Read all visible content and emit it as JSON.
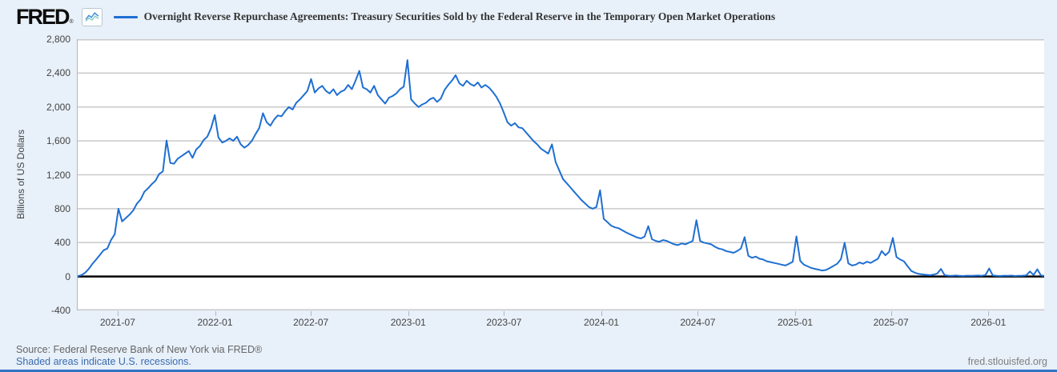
{
  "header": {
    "logo_text": "FRED",
    "registered_mark": "®",
    "series_title": "Overnight Reverse Repurchase Agreements: Treasury Securities Sold by the Federal Reserve in the Temporary Open Market Operations"
  },
  "colors": {
    "background": "#e8f0f9",
    "plot_background": "#ffffff",
    "gridline": "#c9c9c9",
    "series_line": "#1f6fd2",
    "zero_line": "#000000",
    "axis_text": "#444444",
    "title_text": "#333333",
    "source_text": "#666666",
    "link_text": "#3a6bb0",
    "url_text": "#7f7f7f",
    "bottom_bar": "#3273c4"
  },
  "footer": {
    "source": "Source: Federal Reserve Bank of New York via FRED®",
    "note": "Shaded areas indicate U.S. recessions.",
    "site_url": "fred.stlouisfed.org"
  },
  "chart_data": {
    "type": "line",
    "title": "Overnight Reverse Repurchase Agreements: Treasury Securities Sold by the Federal Reserve in the Temporary Open Market Operations",
    "xlabel": "",
    "ylabel": "Billions of US Dollars",
    "ylim": [
      -400,
      2800
    ],
    "y_ticks": [
      2800,
      2400,
      2000,
      1600,
      1200,
      800,
      400,
      0,
      -400
    ],
    "x_domain": [
      "2021-04-15",
      "2026-04-15"
    ],
    "x_ticks": [
      {
        "label": "2021-07",
        "date": "2021-07-01"
      },
      {
        "label": "2022-01",
        "date": "2022-01-01"
      },
      {
        "label": "2022-07",
        "date": "2022-07-01"
      },
      {
        "label": "2023-01",
        "date": "2023-01-01"
      },
      {
        "label": "2023-07",
        "date": "2023-07-01"
      },
      {
        "label": "2024-01",
        "date": "2024-01-01"
      },
      {
        "label": "2024-07",
        "date": "2024-07-01"
      },
      {
        "label": "2025-01",
        "date": "2025-01-01"
      },
      {
        "label": "2025-07",
        "date": "2025-07-01"
      },
      {
        "label": "2026-01",
        "date": "2026-01-01"
      }
    ],
    "grid": true,
    "legend_position": "top",
    "zero_line": 0,
    "frequency": "weekly",
    "series": [
      {
        "name": "Overnight Reverse Repurchase Agreements: Treasury Securities Sold by the Federal Reserve in the Temporary Open Market Operations",
        "color": "#1f6fd2",
        "start_date": "2021-04-15",
        "interval_days": 7,
        "values": [
          5,
          15,
          45,
          90,
          150,
          200,
          255,
          310,
          330,
          430,
          500,
          800,
          650,
          690,
          730,
          780,
          860,
          910,
          1000,
          1040,
          1090,
          1130,
          1210,
          1240,
          1605,
          1340,
          1330,
          1390,
          1420,
          1450,
          1480,
          1400,
          1500,
          1540,
          1610,
          1650,
          1750,
          1905,
          1640,
          1580,
          1600,
          1630,
          1600,
          1650,
          1560,
          1520,
          1550,
          1600,
          1680,
          1750,
          1927,
          1820,
          1780,
          1850,
          1900,
          1890,
          1950,
          2000,
          1970,
          2050,
          2090,
          2140,
          2190,
          2330,
          2170,
          2220,
          2250,
          2190,
          2160,
          2210,
          2140,
          2180,
          2200,
          2260,
          2210,
          2310,
          2426,
          2230,
          2210,
          2170,
          2250,
          2140,
          2090,
          2040,
          2110,
          2130,
          2160,
          2210,
          2240,
          2554,
          2090,
          2040,
          2000,
          2030,
          2050,
          2090,
          2110,
          2060,
          2100,
          2200,
          2260,
          2310,
          2375,
          2280,
          2250,
          2310,
          2270,
          2250,
          2290,
          2230,
          2260,
          2230,
          2180,
          2120,
          2040,
          1935,
          1820,
          1780,
          1810,
          1760,
          1750,
          1700,
          1650,
          1600,
          1560,
          1510,
          1480,
          1450,
          1560,
          1350,
          1250,
          1150,
          1100,
          1050,
          1000,
          950,
          900,
          860,
          820,
          800,
          820,
          1018,
          680,
          640,
          600,
          580,
          570,
          545,
          520,
          500,
          480,
          460,
          450,
          470,
          594,
          440,
          420,
          410,
          430,
          420,
          400,
          380,
          370,
          390,
          380,
          400,
          420,
          665,
          420,
          400,
          390,
          380,
          350,
          330,
          320,
          300,
          290,
          280,
          300,
          330,
          465,
          245,
          220,
          235,
          210,
          200,
          180,
          170,
          160,
          150,
          140,
          130,
          150,
          175,
          473,
          185,
          140,
          120,
          100,
          90,
          80,
          70,
          78,
          100,
          125,
          150,
          205,
          399,
          155,
          130,
          140,
          165,
          150,
          175,
          160,
          185,
          210,
          300,
          250,
          290,
          455,
          230,
          200,
          180,
          120,
          65,
          45,
          30,
          25,
          20,
          15,
          22,
          35,
          90,
          15,
          10,
          8,
          12,
          8,
          6,
          10,
          8,
          10,
          12,
          9,
          16,
          95,
          12,
          8,
          6,
          10,
          8,
          11,
          6,
          9,
          10,
          13,
          60,
          18,
          85,
          12,
          6
        ]
      }
    ]
  }
}
